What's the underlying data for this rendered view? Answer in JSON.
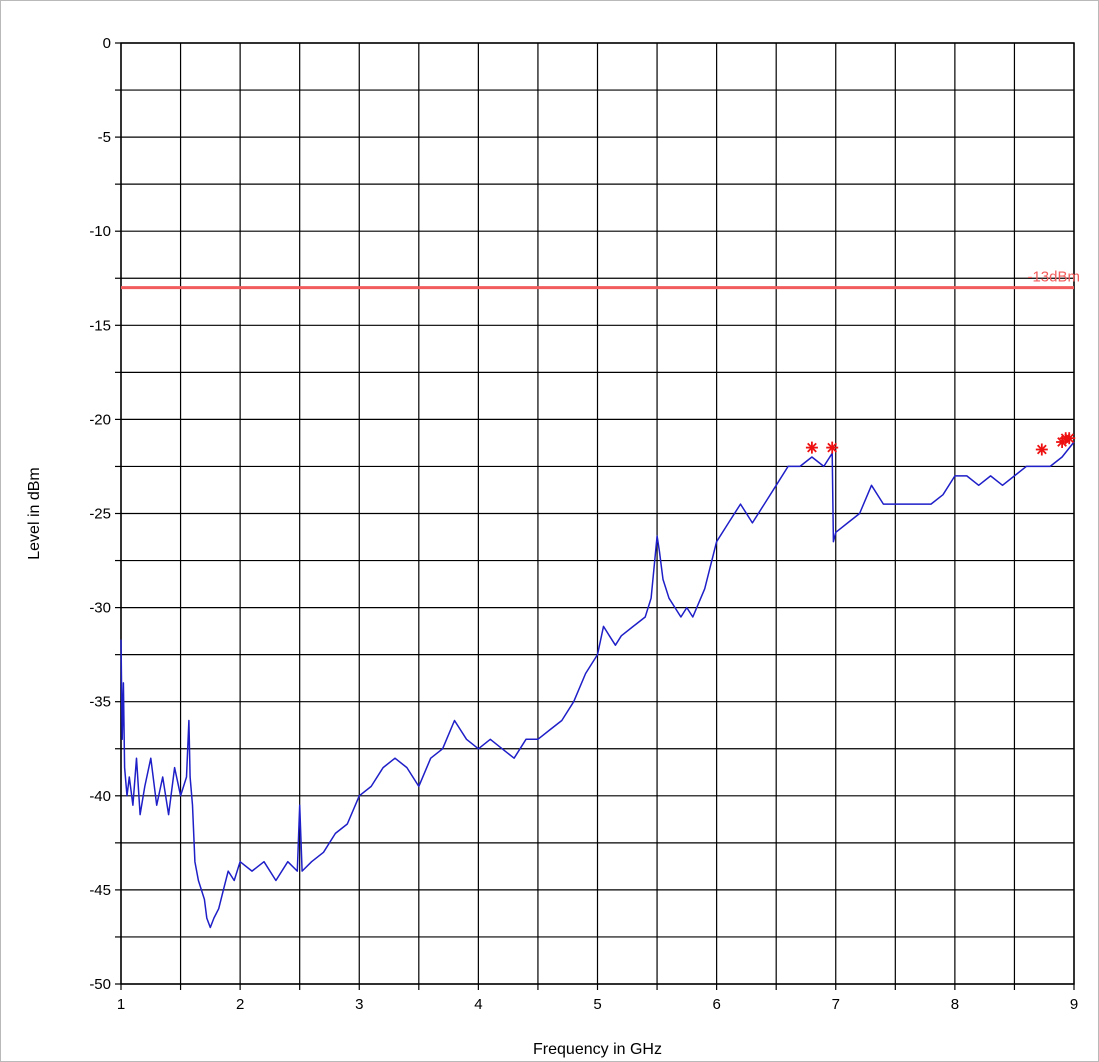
{
  "chart_data": {
    "type": "line",
    "title": "",
    "xlabel": "Frequency in GHz",
    "ylabel": "Level in dBm",
    "xlim": [
      1,
      9
    ],
    "ylim": [
      -50,
      0
    ],
    "x_ticks": [
      1,
      2,
      3,
      4,
      5,
      6,
      7,
      8,
      9
    ],
    "x_tick_labels": [
      "1",
      "2",
      "3",
      "4",
      "5",
      "6",
      "7",
      "8",
      "9"
    ],
    "y_ticks": [
      0,
      -5,
      -10,
      -15,
      -20,
      -25,
      -30,
      -35,
      -40,
      -45,
      -50
    ],
    "y_tick_labels": [
      "0",
      "-5",
      "-10",
      "-15",
      "-20",
      "-25",
      "-30",
      "-35",
      "-40",
      "-45",
      "-50"
    ],
    "x_grid_step": 0.5,
    "y_grid_step": 2.5,
    "grid": true,
    "limit_line": {
      "value": -13,
      "label": "-13dBm",
      "color": "#f25c5c"
    },
    "series": [
      {
        "color": "#1f1fc8",
        "x": [
          1.0,
          1.01,
          1.02,
          1.03,
          1.05,
          1.07,
          1.1,
          1.13,
          1.16,
          1.2,
          1.25,
          1.3,
          1.35,
          1.4,
          1.45,
          1.5,
          1.55,
          1.57,
          1.58,
          1.6,
          1.62,
          1.65,
          1.7,
          1.72,
          1.75,
          1.78,
          1.82,
          1.86,
          1.9,
          1.95,
          2.0,
          2.1,
          2.2,
          2.3,
          2.4,
          2.48,
          2.5,
          2.52,
          2.6,
          2.7,
          2.8,
          2.9,
          3.0,
          3.1,
          3.2,
          3.3,
          3.4,
          3.5,
          3.6,
          3.7,
          3.8,
          3.9,
          4.0,
          4.1,
          4.2,
          4.3,
          4.4,
          4.5,
          4.6,
          4.7,
          4.8,
          4.9,
          5.0,
          5.05,
          5.1,
          5.15,
          5.2,
          5.3,
          5.4,
          5.45,
          5.5,
          5.52,
          5.55,
          5.6,
          5.7,
          5.75,
          5.8,
          5.9,
          6.0,
          6.1,
          6.2,
          6.3,
          6.4,
          6.5,
          6.6,
          6.7,
          6.8,
          6.9,
          6.97,
          6.98,
          7.0,
          7.1,
          7.2,
          7.3,
          7.4,
          7.5,
          7.6,
          7.7,
          7.8,
          7.9,
          8.0,
          8.1,
          8.2,
          8.3,
          8.4,
          8.5,
          8.6,
          8.7,
          8.8,
          8.9,
          9.0
        ],
        "y": [
          -31.7,
          -37.0,
          -34.0,
          -38.5,
          -40.0,
          -39.0,
          -40.5,
          -38.0,
          -41.0,
          -39.5,
          -38.0,
          -40.5,
          -39.0,
          -41.0,
          -38.5,
          -40.0,
          -39.0,
          -36.0,
          -39.0,
          -40.5,
          -43.5,
          -44.5,
          -45.5,
          -46.5,
          -47.0,
          -46.5,
          -46.0,
          -45.0,
          -44.0,
          -44.5,
          -43.5,
          -44.0,
          -43.5,
          -44.5,
          -43.5,
          -44.0,
          -40.5,
          -44.0,
          -43.5,
          -43.0,
          -42.0,
          -41.5,
          -40.0,
          -39.5,
          -38.5,
          -38.0,
          -38.5,
          -39.5,
          -38.0,
          -37.5,
          -36.0,
          -37.0,
          -37.5,
          -37.0,
          -37.5,
          -38.0,
          -37.0,
          -37.0,
          -36.5,
          -36.0,
          -35.0,
          -33.5,
          -32.5,
          -31.0,
          -31.5,
          -32.0,
          -31.5,
          -31.0,
          -30.5,
          -29.5,
          -26.2,
          -27.0,
          -28.5,
          -29.5,
          -30.5,
          -30.0,
          -30.5,
          -29.0,
          -26.5,
          -25.5,
          -24.5,
          -25.5,
          -24.5,
          -23.5,
          -22.5,
          -22.5,
          -22.0,
          -22.5,
          -21.8,
          -26.5,
          -26.0,
          -25.5,
          -25.0,
          -23.5,
          -24.5,
          -24.5,
          -24.5,
          -24.5,
          -24.5,
          -24.0,
          -23.0,
          -23.0,
          -23.5,
          -23.0,
          -23.5,
          -23.0,
          -22.5,
          -22.5,
          -22.5,
          -22.0,
          -21.2
        ]
      }
    ],
    "markers": {
      "symbol": "asterisk",
      "color": "#ee1111",
      "points": [
        {
          "x": 6.8,
          "y": -21.5
        },
        {
          "x": 6.97,
          "y": -21.5
        },
        {
          "x": 8.73,
          "y": -21.6
        },
        {
          "x": 8.9,
          "y": -21.2
        },
        {
          "x": 8.93,
          "y": -21.0
        },
        {
          "x": 8.96,
          "y": -21.0
        }
      ]
    }
  }
}
